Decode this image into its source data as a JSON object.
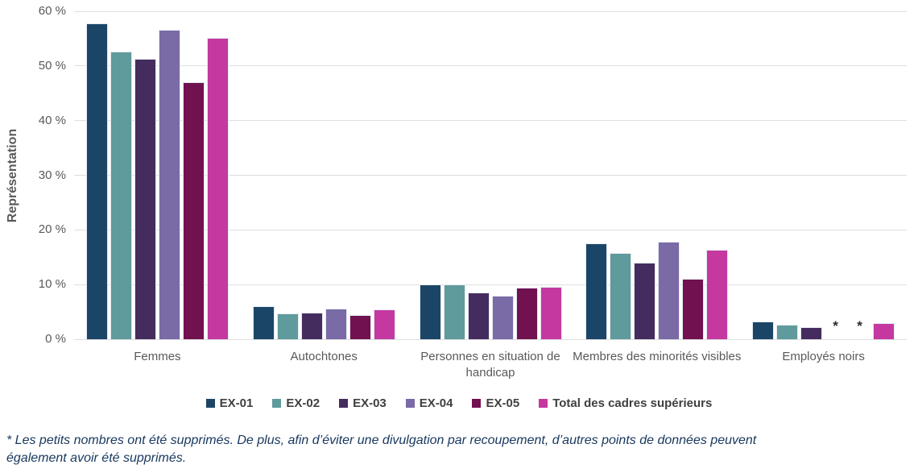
{
  "chart_data": {
    "type": "bar",
    "title": "",
    "ylabel": "Représentation",
    "xlabel": "",
    "ylim": [
      0,
      60
    ],
    "ytick_step": 10,
    "ytick_suffix": " %",
    "grid": true,
    "legend_position": "bottom",
    "categories": [
      "Femmes",
      "Autochtones",
      "Personnes en situation de handicap",
      "Membres des minorités visibles",
      "Employés noirs"
    ],
    "series": [
      {
        "name": "EX-01",
        "color": "#1b4566",
        "values": [
          57.8,
          6.0,
          10.1,
          17.6,
          3.3
        ]
      },
      {
        "name": "EX-02",
        "color": "#5f9a9c",
        "values": [
          52.7,
          4.7,
          10.0,
          15.8,
          2.7
        ]
      },
      {
        "name": "EX-03",
        "color": "#452c5e",
        "values": [
          51.3,
          4.9,
          8.5,
          14.0,
          2.2
        ]
      },
      {
        "name": "EX-04",
        "color": "#7a6aa6",
        "values": [
          56.6,
          5.6,
          8.0,
          17.8,
          null
        ]
      },
      {
        "name": "EX-05",
        "color": "#721150",
        "values": [
          47.0,
          4.4,
          9.5,
          11.0,
          null
        ]
      },
      {
        "name": "Total des cadres supérieurs",
        "color": "#c438a0",
        "values": [
          55.2,
          5.5,
          9.6,
          16.4,
          3.0
        ]
      }
    ],
    "suppressed_marker": "*",
    "gridline_color": "#dfdfdf",
    "text_color": "#595959"
  },
  "footnote": "* Les petits nombres ont été supprimés. De plus, afin d’éviter une divulgation par recoupement, d’autres points de données peuvent également avoir été supprimés."
}
